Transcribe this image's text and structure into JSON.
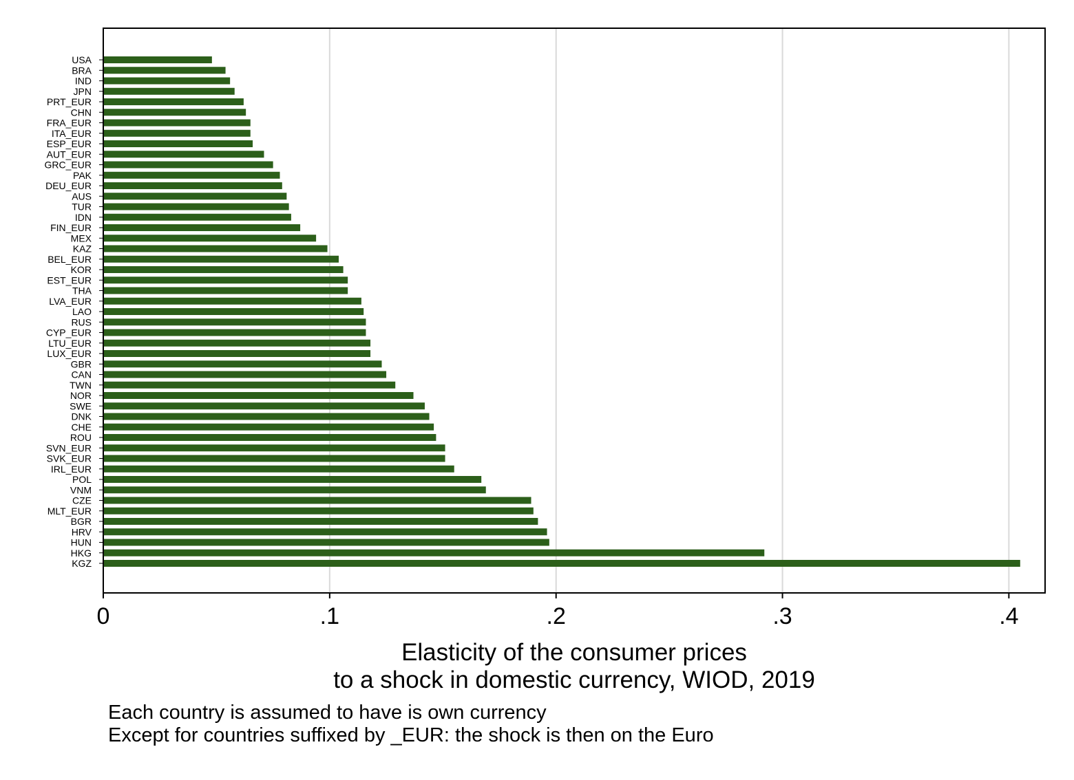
{
  "chart_data": {
    "type": "bar",
    "orientation": "horizontal",
    "categories": [
      "USA",
      "BRA",
      "IND",
      "JPN",
      "PRT_EUR",
      "CHN",
      "FRA_EUR",
      "ITA_EUR",
      "ESP_EUR",
      "AUT_EUR",
      "GRC_EUR",
      "PAK",
      "DEU_EUR",
      "AUS",
      "TUR",
      "IDN",
      "FIN_EUR",
      "MEX",
      "KAZ",
      "BEL_EUR",
      "KOR",
      "EST_EUR",
      "THA",
      "LVA_EUR",
      "LAO",
      "RUS",
      "CYP_EUR",
      "LTU_EUR",
      "LUX_EUR",
      "GBR",
      "CAN",
      "TWN",
      "NOR",
      "SWE",
      "DNK",
      "CHE",
      "ROU",
      "SVN_EUR",
      "SVK_EUR",
      "IRL_EUR",
      "POL",
      "VNM",
      "CZE",
      "MLT_EUR",
      "BGR",
      "HRV",
      "HUN",
      "HKG",
      "KGZ"
    ],
    "values": [
      0.048,
      0.054,
      0.056,
      0.058,
      0.062,
      0.063,
      0.065,
      0.065,
      0.066,
      0.071,
      0.075,
      0.078,
      0.079,
      0.081,
      0.082,
      0.083,
      0.087,
      0.094,
      0.099,
      0.104,
      0.106,
      0.108,
      0.108,
      0.114,
      0.115,
      0.116,
      0.116,
      0.118,
      0.118,
      0.123,
      0.125,
      0.129,
      0.137,
      0.142,
      0.144,
      0.146,
      0.147,
      0.151,
      0.151,
      0.155,
      0.167,
      0.169,
      0.189,
      0.19,
      0.192,
      0.196,
      0.197,
      0.292,
      0.405
    ],
    "bar_color": "#2c5f1a",
    "xlim": [
      0,
      0.416
    ],
    "x_ticks": [
      0,
      0.1,
      0.2,
      0.3,
      0.4
    ],
    "x_tick_labels": [
      "0",
      ".1",
      ".2",
      ".3",
      ".4"
    ],
    "xlabel_lines": [
      "Elasticity of the consumer prices",
      "to a shock in domestic currency, WIOD, 2019"
    ],
    "grid": true,
    "grid_color": "#d9d9d9"
  },
  "notes": [
    "Each country is assumed to have is own currency",
    "Except for countries suffixed by _EUR: the shock is then on the Euro"
  ]
}
